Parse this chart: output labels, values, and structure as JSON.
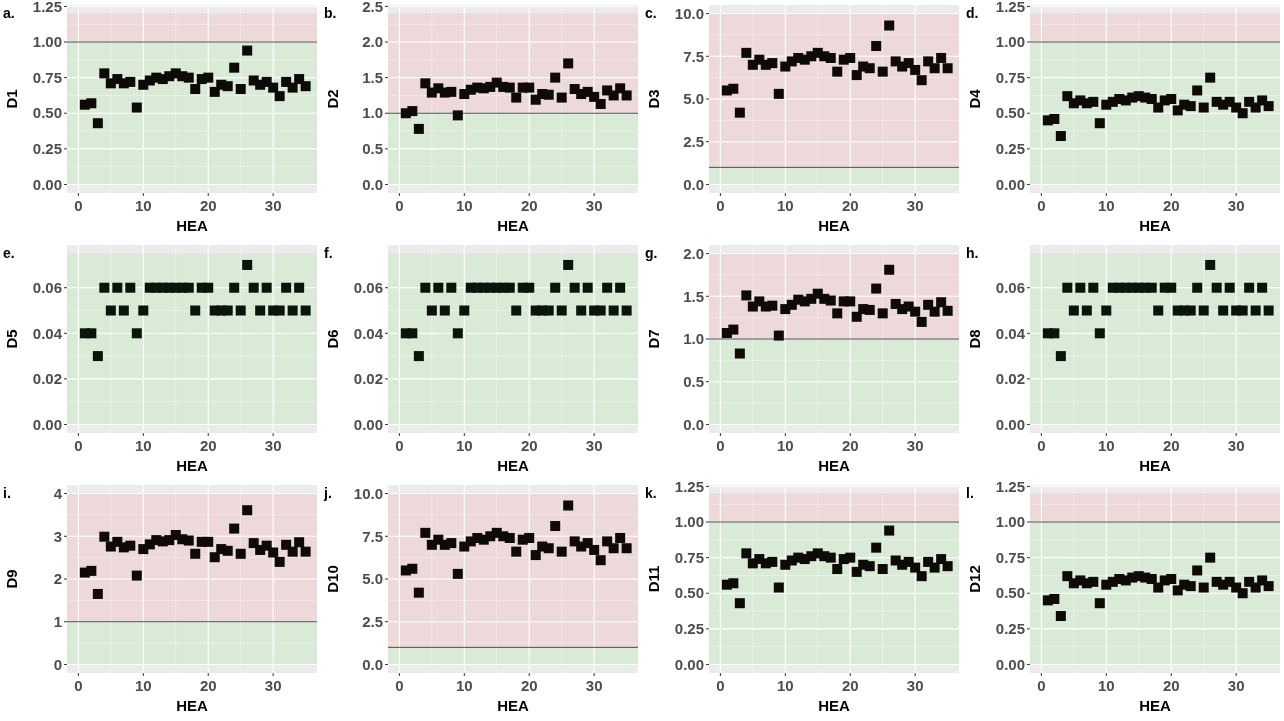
{
  "chart_data": [
    {
      "type": "scatter",
      "title": "a.",
      "xlabel": "HEA",
      "ylabel": "D1",
      "x": [
        1,
        2,
        3,
        4,
        5,
        6,
        7,
        8,
        9,
        10,
        11,
        12,
        13,
        14,
        15,
        16,
        17,
        18,
        19,
        20,
        21,
        22,
        23,
        24,
        25,
        26,
        27,
        28,
        29,
        30,
        31,
        32,
        33,
        34,
        35
      ],
      "series": [
        {
          "color": "#0d0a08",
          "values": [
            0.56,
            0.57,
            0.43,
            0.78,
            0.71,
            0.74,
            0.71,
            0.72,
            0.54,
            0.7,
            0.73,
            0.75,
            0.74,
            0.76,
            0.78,
            0.76,
            0.75,
            0.67,
            0.74,
            0.75,
            0.65,
            0.7,
            0.69,
            0.82,
            0.67,
            0.94,
            0.73,
            0.7,
            0.72,
            0.68,
            0.62,
            0.72,
            0.68,
            0.74,
            0.69
          ]
        }
      ],
      "xlim": [
        -1.75,
        36.75
      ],
      "xticks": [
        0,
        10,
        20,
        30
      ],
      "ylim": [
        -0.06,
        1.26
      ],
      "yticks": [
        {
          "value": 0,
          "label": "0.00"
        },
        0.25,
        {
          "value": 0.5,
          "label": "0.50"
        },
        0.75,
        {
          "value": 1,
          "label": "1.00"
        },
        1.25
      ],
      "grid": true,
      "marker": "square",
      "bands": [
        {
          "axis": "y",
          "from": 0,
          "to": 1,
          "color": "#d9ebd6"
        },
        {
          "axis": "y",
          "from": 1,
          "to": 1.2,
          "color": "#edd8da"
        }
      ],
      "ref_lines": [
        {
          "axis": "y",
          "value": 1,
          "color": "#4d4d4d"
        }
      ]
    },
    {
      "type": "scatter",
      "title": "b.",
      "xlabel": "HEA",
      "ylabel": "D2",
      "x": [
        1,
        2,
        3,
        4,
        5,
        6,
        7,
        8,
        9,
        10,
        11,
        12,
        13,
        14,
        15,
        16,
        17,
        18,
        19,
        20,
        21,
        22,
        23,
        24,
        25,
        26,
        27,
        28,
        29,
        30,
        31,
        32,
        33,
        34,
        35
      ],
      "series": [
        {
          "color": "#0d0a08",
          "values": [
            1.0,
            1.03,
            0.78,
            1.42,
            1.29,
            1.35,
            1.29,
            1.3,
            0.97,
            1.27,
            1.33,
            1.36,
            1.35,
            1.37,
            1.43,
            1.37,
            1.36,
            1.22,
            1.36,
            1.36,
            1.19,
            1.27,
            1.26,
            1.5,
            1.22,
            1.7,
            1.34,
            1.27,
            1.3,
            1.23,
            1.13,
            1.32,
            1.25,
            1.35,
            1.25
          ]
        }
      ],
      "xlim": [
        -1.75,
        36.75
      ],
      "xticks": [
        0,
        10,
        20,
        30
      ],
      "ylim": [
        -0.12,
        2.52
      ],
      "yticks": [
        {
          "value": 0,
          "label": "0.0"
        },
        0.5,
        {
          "value": 1,
          "label": "1.0"
        },
        1.5,
        {
          "value": 2,
          "label": "2.0"
        },
        2.5
      ],
      "grid": true,
      "marker": "square",
      "bands": [
        {
          "axis": "y",
          "from": 0,
          "to": 1,
          "color": "#d9ebd6"
        },
        {
          "axis": "y",
          "from": 1,
          "to": 2.4,
          "color": "#edd8da"
        }
      ],
      "ref_lines": [
        {
          "axis": "y",
          "value": 1,
          "color": "#4d4d4d"
        }
      ]
    },
    {
      "type": "scatter",
      "title": "c.",
      "xlabel": "HEA",
      "ylabel": "D3",
      "x": [
        1,
        2,
        3,
        4,
        5,
        6,
        7,
        8,
        9,
        10,
        11,
        12,
        13,
        14,
        15,
        16,
        17,
        18,
        19,
        20,
        21,
        22,
        23,
        24,
        25,
        26,
        27,
        28,
        29,
        30,
        31,
        32,
        33,
        34,
        35
      ],
      "series": [
        {
          "color": "#0d0a08",
          "values": [
            5.5,
            5.6,
            4.2,
            7.7,
            7.0,
            7.3,
            7.0,
            7.1,
            5.3,
            6.9,
            7.2,
            7.4,
            7.3,
            7.5,
            7.7,
            7.5,
            7.4,
            6.6,
            7.3,
            7.4,
            6.4,
            6.9,
            6.8,
            8.1,
            6.6,
            9.3,
            7.2,
            6.9,
            7.1,
            6.7,
            6.1,
            7.2,
            6.8,
            7.4,
            6.8
          ]
        }
      ],
      "xlim": [
        -1.75,
        36.75
      ],
      "xticks": [
        0,
        10,
        20,
        30
      ],
      "ylim": [
        -0.5,
        10.5
      ],
      "yticks": [
        {
          "value": 0,
          "label": "0.0"
        },
        2.5,
        {
          "value": 5,
          "label": "5.0"
        },
        7.5,
        {
          "value": 10,
          "label": "10.0"
        }
      ],
      "grid": true,
      "marker": "square",
      "bands": [
        {
          "axis": "y",
          "from": 0,
          "to": 1,
          "color": "#d9ebd6"
        },
        {
          "axis": "y",
          "from": 1,
          "to": 10,
          "color": "#edd8da"
        }
      ],
      "ref_lines": [
        {
          "axis": "y",
          "value": 1,
          "color": "#4d4d4d"
        }
      ]
    },
    {
      "type": "scatter",
      "title": "d.",
      "xlabel": "HEA",
      "ylabel": "D4",
      "x": [
        1,
        2,
        3,
        4,
        5,
        6,
        7,
        8,
        9,
        10,
        11,
        12,
        13,
        14,
        15,
        16,
        17,
        18,
        19,
        20,
        21,
        22,
        23,
        24,
        25,
        26,
        27,
        28,
        29,
        30,
        31,
        32,
        33,
        34,
        35
      ],
      "series": [
        {
          "color": "#0d0a08",
          "values": [
            0.45,
            0.46,
            0.34,
            0.62,
            0.57,
            0.59,
            0.57,
            0.58,
            0.43,
            0.56,
            0.58,
            0.6,
            0.59,
            0.61,
            0.62,
            0.61,
            0.6,
            0.54,
            0.59,
            0.6,
            0.52,
            0.56,
            0.55,
            0.66,
            0.54,
            0.75,
            0.58,
            0.56,
            0.58,
            0.54,
            0.5,
            0.58,
            0.54,
            0.59,
            0.55
          ]
        }
      ],
      "xlim": [
        -1.75,
        36.75
      ],
      "xticks": [
        0,
        10,
        20,
        30
      ],
      "ylim": [
        -0.06,
        1.26
      ],
      "yticks": [
        {
          "value": 0,
          "label": "0.00"
        },
        0.25,
        {
          "value": 0.5,
          "label": "0.50"
        },
        0.75,
        {
          "value": 1,
          "label": "1.00"
        },
        1.25
      ],
      "grid": true,
      "marker": "square",
      "bands": [
        {
          "axis": "y",
          "from": 0,
          "to": 1,
          "color": "#d9ebd6"
        },
        {
          "axis": "y",
          "from": 1,
          "to": 1.2,
          "color": "#edd8da"
        }
      ],
      "ref_lines": [
        {
          "axis": "y",
          "value": 1,
          "color": "#4d4d4d"
        }
      ]
    },
    {
      "type": "scatter",
      "title": "e.",
      "xlabel": "HEA",
      "ylabel": "D5",
      "x": [
        1,
        2,
        3,
        4,
        5,
        6,
        7,
        8,
        9,
        10,
        11,
        12,
        13,
        14,
        15,
        16,
        17,
        18,
        19,
        20,
        21,
        22,
        23,
        24,
        25,
        26,
        27,
        28,
        29,
        30,
        31,
        32,
        33,
        34,
        35
      ],
      "series": [
        {
          "color": "#0a140a",
          "values": [
            0.04,
            0.04,
            0.03,
            0.06,
            0.05,
            0.06,
            0.05,
            0.06,
            0.04,
            0.05,
            0.06,
            0.06,
            0.06,
            0.06,
            0.06,
            0.06,
            0.06,
            0.05,
            0.06,
            0.06,
            0.05,
            0.05,
            0.05,
            0.06,
            0.05,
            0.07,
            0.06,
            0.05,
            0.06,
            0.05,
            0.05,
            0.06,
            0.05,
            0.06,
            0.05
          ]
        }
      ],
      "xlim": [
        -1.75,
        36.75
      ],
      "xticks": [
        0,
        10,
        20,
        30
      ],
      "ylim": [
        -0.00375,
        0.07875
      ],
      "yticks": [
        {
          "value": 0,
          "label": "0.00"
        },
        0.02,
        0.04,
        0.06
      ],
      "grid": true,
      "marker": "square",
      "bands": [
        {
          "axis": "y",
          "from": 0,
          "to": 0.075,
          "color": "#d9ebd6"
        }
      ]
    },
    {
      "type": "scatter",
      "title": "f.",
      "xlabel": "HEA",
      "ylabel": "D6",
      "x": [
        1,
        2,
        3,
        4,
        5,
        6,
        7,
        8,
        9,
        10,
        11,
        12,
        13,
        14,
        15,
        16,
        17,
        18,
        19,
        20,
        21,
        22,
        23,
        24,
        25,
        26,
        27,
        28,
        29,
        30,
        31,
        32,
        33,
        34,
        35
      ],
      "series": [
        {
          "color": "#0a140a",
          "values": [
            0.04,
            0.04,
            0.03,
            0.06,
            0.05,
            0.06,
            0.05,
            0.06,
            0.04,
            0.05,
            0.06,
            0.06,
            0.06,
            0.06,
            0.06,
            0.06,
            0.06,
            0.05,
            0.06,
            0.06,
            0.05,
            0.05,
            0.05,
            0.06,
            0.05,
            0.07,
            0.06,
            0.05,
            0.06,
            0.05,
            0.05,
            0.06,
            0.05,
            0.06,
            0.05
          ]
        }
      ],
      "xlim": [
        -1.75,
        36.75
      ],
      "xticks": [
        0,
        10,
        20,
        30
      ],
      "ylim": [
        -0.00375,
        0.07875
      ],
      "yticks": [
        {
          "value": 0,
          "label": "0.00"
        },
        0.02,
        0.04,
        0.06
      ],
      "grid": true,
      "marker": "square",
      "bands": [
        {
          "axis": "y",
          "from": 0,
          "to": 0.075,
          "color": "#d9ebd6"
        }
      ]
    },
    {
      "type": "scatter",
      "title": "g.",
      "xlabel": "HEA",
      "ylabel": "D7",
      "x": [
        1,
        2,
        3,
        4,
        5,
        6,
        7,
        8,
        9,
        10,
        11,
        12,
        13,
        14,
        15,
        16,
        17,
        18,
        19,
        20,
        21,
        22,
        23,
        24,
        25,
        26,
        27,
        28,
        29,
        30,
        31,
        32,
        33,
        34,
        35
      ],
      "series": [
        {
          "color": "#0d0a08",
          "values": [
            1.07,
            1.11,
            0.83,
            1.51,
            1.38,
            1.44,
            1.38,
            1.39,
            1.04,
            1.35,
            1.4,
            1.46,
            1.44,
            1.47,
            1.53,
            1.47,
            1.45,
            1.3,
            1.44,
            1.44,
            1.26,
            1.35,
            1.34,
            1.59,
            1.3,
            1.81,
            1.41,
            1.35,
            1.38,
            1.32,
            1.2,
            1.4,
            1.32,
            1.43,
            1.33
          ]
        }
      ],
      "xlim": [
        -1.75,
        36.75
      ],
      "xticks": [
        0,
        10,
        20,
        30
      ],
      "ylim": [
        -0.1,
        2.1
      ],
      "yticks": [
        {
          "value": 0,
          "label": "0.0"
        },
        0.5,
        {
          "value": 1,
          "label": "1.0"
        },
        1.5,
        {
          "value": 2,
          "label": "2.0"
        }
      ],
      "grid": true,
      "marker": "square",
      "bands": [
        {
          "axis": "y",
          "from": 0,
          "to": 1,
          "color": "#d9ebd6"
        },
        {
          "axis": "y",
          "from": 1,
          "to": 2,
          "color": "#edd8da"
        }
      ],
      "ref_lines": [
        {
          "axis": "y",
          "value": 1,
          "color": "#4d4d4d"
        }
      ]
    },
    {
      "type": "scatter",
      "title": "h.",
      "xlabel": "HEA",
      "ylabel": "D8",
      "x": [
        1,
        2,
        3,
        4,
        5,
        6,
        7,
        8,
        9,
        10,
        11,
        12,
        13,
        14,
        15,
        16,
        17,
        18,
        19,
        20,
        21,
        22,
        23,
        24,
        25,
        26,
        27,
        28,
        29,
        30,
        31,
        32,
        33,
        34,
        35
      ],
      "series": [
        {
          "color": "#0a140a",
          "values": [
            0.04,
            0.04,
            0.03,
            0.06,
            0.05,
            0.06,
            0.05,
            0.06,
            0.04,
            0.05,
            0.06,
            0.06,
            0.06,
            0.06,
            0.06,
            0.06,
            0.06,
            0.05,
            0.06,
            0.06,
            0.05,
            0.05,
            0.05,
            0.06,
            0.05,
            0.07,
            0.06,
            0.05,
            0.06,
            0.05,
            0.05,
            0.06,
            0.05,
            0.06,
            0.05
          ]
        }
      ],
      "xlim": [
        -1.75,
        36.75
      ],
      "xticks": [
        0,
        10,
        20,
        30
      ],
      "ylim": [
        -0.00375,
        0.07875
      ],
      "yticks": [
        {
          "value": 0,
          "label": "0.00"
        },
        0.02,
        0.04,
        0.06
      ],
      "grid": true,
      "marker": "square",
      "bands": [
        {
          "axis": "y",
          "from": 0,
          "to": 0.075,
          "color": "#d9ebd6"
        }
      ]
    },
    {
      "type": "scatter",
      "title": "i.",
      "xlabel": "HEA",
      "ylabel": "D9",
      "x": [
        1,
        2,
        3,
        4,
        5,
        6,
        7,
        8,
        9,
        10,
        11,
        12,
        13,
        14,
        15,
        16,
        17,
        18,
        19,
        20,
        21,
        22,
        23,
        24,
        25,
        26,
        27,
        28,
        29,
        30,
        31,
        32,
        33,
        34,
        35
      ],
      "series": [
        {
          "color": "#0d0a08",
          "values": [
            2.15,
            2.19,
            1.65,
            2.99,
            2.76,
            2.87,
            2.74,
            2.78,
            2.08,
            2.7,
            2.81,
            2.91,
            2.88,
            2.91,
            3.03,
            2.93,
            2.9,
            2.59,
            2.87,
            2.87,
            2.51,
            2.7,
            2.66,
            3.18,
            2.59,
            3.61,
            2.84,
            2.68,
            2.78,
            2.62,
            2.4,
            2.8,
            2.64,
            2.86,
            2.64
          ]
        }
      ],
      "xlim": [
        -1.75,
        36.75
      ],
      "xticks": [
        0,
        10,
        20,
        30
      ],
      "ylim": [
        -0.2,
        4.2
      ],
      "yticks": [
        0,
        1,
        2,
        3,
        4
      ],
      "grid": true,
      "marker": "square",
      "bands": [
        {
          "axis": "y",
          "from": 0,
          "to": 1,
          "color": "#d9ebd6"
        },
        {
          "axis": "y",
          "from": 1,
          "to": 4,
          "color": "#edd8da"
        }
      ],
      "ref_lines": [
        {
          "axis": "y",
          "value": 1,
          "color": "#4d4d4d"
        }
      ]
    },
    {
      "type": "scatter",
      "title": "j.",
      "xlabel": "HEA",
      "ylabel": "D10",
      "x": [
        1,
        2,
        3,
        4,
        5,
        6,
        7,
        8,
        9,
        10,
        11,
        12,
        13,
        14,
        15,
        16,
        17,
        18,
        19,
        20,
        21,
        22,
        23,
        24,
        25,
        26,
        27,
        28,
        29,
        30,
        31,
        32,
        33,
        34,
        35
      ],
      "series": [
        {
          "color": "#0d0a08",
          "values": [
            5.5,
            5.6,
            4.2,
            7.7,
            7.0,
            7.3,
            7.0,
            7.1,
            5.3,
            6.9,
            7.2,
            7.4,
            7.3,
            7.5,
            7.7,
            7.5,
            7.4,
            6.6,
            7.3,
            7.4,
            6.4,
            6.9,
            6.8,
            8.1,
            6.6,
            9.3,
            7.2,
            6.9,
            7.1,
            6.7,
            6.1,
            7.2,
            6.8,
            7.4,
            6.8
          ]
        }
      ],
      "xlim": [
        -1.75,
        36.75
      ],
      "xticks": [
        0,
        10,
        20,
        30
      ],
      "ylim": [
        -0.5,
        10.5
      ],
      "yticks": [
        {
          "value": 0,
          "label": "0.0"
        },
        2.5,
        {
          "value": 5,
          "label": "5.0"
        },
        7.5,
        {
          "value": 10,
          "label": "10.0"
        }
      ],
      "grid": true,
      "marker": "square",
      "bands": [
        {
          "axis": "y",
          "from": 0,
          "to": 1,
          "color": "#d9ebd6"
        },
        {
          "axis": "y",
          "from": 1,
          "to": 10,
          "color": "#edd8da"
        }
      ],
      "ref_lines": [
        {
          "axis": "y",
          "value": 1,
          "color": "#4d4d4d"
        }
      ]
    },
    {
      "type": "scatter",
      "title": "k.",
      "xlabel": "HEA",
      "ylabel": "D11",
      "x": [
        1,
        2,
        3,
        4,
        5,
        6,
        7,
        8,
        9,
        10,
        11,
        12,
        13,
        14,
        15,
        16,
        17,
        18,
        19,
        20,
        21,
        22,
        23,
        24,
        25,
        26,
        27,
        28,
        29,
        30,
        31,
        32,
        33,
        34,
        35
      ],
      "series": [
        {
          "color": "#0d0a08",
          "values": [
            0.56,
            0.57,
            0.43,
            0.78,
            0.71,
            0.74,
            0.71,
            0.72,
            0.54,
            0.7,
            0.73,
            0.75,
            0.74,
            0.76,
            0.78,
            0.76,
            0.75,
            0.67,
            0.74,
            0.75,
            0.65,
            0.7,
            0.69,
            0.82,
            0.67,
            0.94,
            0.73,
            0.7,
            0.72,
            0.68,
            0.62,
            0.72,
            0.68,
            0.74,
            0.69
          ]
        }
      ],
      "xlim": [
        -1.75,
        36.75
      ],
      "xticks": [
        0,
        10,
        20,
        30
      ],
      "ylim": [
        -0.06,
        1.26
      ],
      "yticks": [
        {
          "value": 0,
          "label": "0.00"
        },
        0.25,
        {
          "value": 0.5,
          "label": "0.50"
        },
        0.75,
        {
          "value": 1,
          "label": "1.00"
        },
        1.25
      ],
      "grid": true,
      "marker": "square",
      "bands": [
        {
          "axis": "y",
          "from": 0,
          "to": 1,
          "color": "#d9ebd6"
        },
        {
          "axis": "y",
          "from": 1,
          "to": 1.2,
          "color": "#edd8da"
        }
      ],
      "ref_lines": [
        {
          "axis": "y",
          "value": 1,
          "color": "#4d4d4d"
        }
      ]
    },
    {
      "type": "scatter",
      "title": "l.",
      "xlabel": "HEA",
      "ylabel": "D12",
      "x": [
        1,
        2,
        3,
        4,
        5,
        6,
        7,
        8,
        9,
        10,
        11,
        12,
        13,
        14,
        15,
        16,
        17,
        18,
        19,
        20,
        21,
        22,
        23,
        24,
        25,
        26,
        27,
        28,
        29,
        30,
        31,
        32,
        33,
        34,
        35
      ],
      "series": [
        {
          "color": "#0d0a08",
          "values": [
            0.45,
            0.46,
            0.34,
            0.62,
            0.57,
            0.59,
            0.57,
            0.58,
            0.43,
            0.56,
            0.58,
            0.6,
            0.59,
            0.61,
            0.62,
            0.61,
            0.6,
            0.54,
            0.59,
            0.6,
            0.52,
            0.56,
            0.55,
            0.66,
            0.54,
            0.75,
            0.58,
            0.56,
            0.58,
            0.54,
            0.5,
            0.58,
            0.54,
            0.59,
            0.55
          ]
        }
      ],
      "xlim": [
        -1.75,
        36.75
      ],
      "xticks": [
        0,
        10,
        20,
        30
      ],
      "ylim": [
        -0.06,
        1.26
      ],
      "yticks": [
        {
          "value": 0,
          "label": "0.00"
        },
        0.25,
        {
          "value": 0.5,
          "label": "0.50"
        },
        0.75,
        {
          "value": 1,
          "label": "1.00"
        },
        1.25
      ],
      "grid": true,
      "marker": "square",
      "bands": [
        {
          "axis": "y",
          "from": 0,
          "to": 1,
          "color": "#d9ebd6"
        },
        {
          "axis": "y",
          "from": 1,
          "to": 1.2,
          "color": "#edd8da"
        }
      ],
      "ref_lines": [
        {
          "axis": "y",
          "value": 1,
          "color": "#4d4d4d"
        }
      ]
    }
  ]
}
